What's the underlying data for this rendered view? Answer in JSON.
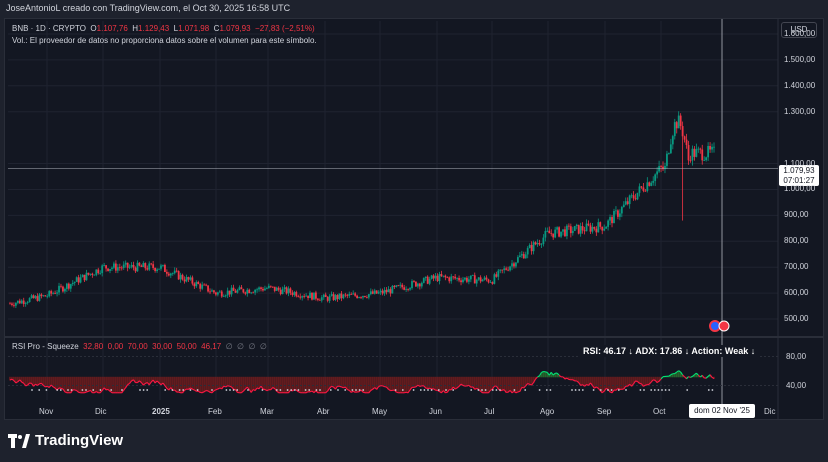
{
  "header": {
    "credit": "JoseAntonioL creado con TradingView.com, el Oct 30, 2025 16:58 UTC"
  },
  "legend": {
    "symbol": "BNB · 1D · CRYPTO",
    "open_label": "O",
    "open": "1.107,76",
    "high_label": "H",
    "high": "1.129,43",
    "low_label": "L",
    "low": "1.071,98",
    "close_label": "C",
    "close": "1.079,93",
    "change": "−27,83 (−2,51%)",
    "volume_note": "Vol.: El proveedor de datos no proporciona datos sobre el volumen para este símbolo."
  },
  "currency_button": "USD",
  "price_axis": [
    "1.600,00",
    "1.500,00",
    "1.400,00",
    "1.300,00",
    "1.100,00",
    "1.000,00",
    "900,00",
    "800,00",
    "700,00",
    "600,00",
    "500,00"
  ],
  "price_tag": {
    "price": "1.079,93",
    "countdown": "07:01:27"
  },
  "oscillator": {
    "name": "RSI Pro - Squeeze",
    "values": [
      "32,80",
      "0,00",
      "70,00",
      "30,00",
      "50,00",
      "46,17",
      "∅",
      "∅",
      "∅",
      "∅"
    ],
    "axis": [
      "80,00",
      "40,00"
    ],
    "status": "RSI: 46.17 ↓  ADX: 17.86 ↓  Action: Weak ↓"
  },
  "time_axis": [
    "Nov",
    "Dic",
    "2025",
    "Feb",
    "Mar",
    "Abr",
    "May",
    "Jun",
    "Jul",
    "Ago",
    "Sep",
    "Oct",
    "Dic"
  ],
  "crosshair_date": "dom 02 Nov '25",
  "footer": {
    "brand": "TradingView"
  },
  "colors": {
    "up": "#089981",
    "down": "#f23645",
    "background": "#131722",
    "rsi_green": "#00e676",
    "rsi_red": "#ff1744"
  },
  "chart_data": {
    "type": "candlestick",
    "symbol": "BNB",
    "interval": "1D",
    "y_range": [
      450,
      1650
    ],
    "monthly_close": {
      "x": [
        "Nov",
        "Dic",
        "2025",
        "Feb",
        "Mar",
        "Abr",
        "May",
        "Jun",
        "Jul",
        "Ago",
        "Sep",
        "Oct"
      ],
      "values": [
        590,
        700,
        700,
        600,
        620,
        580,
        600,
        660,
        650,
        830,
        860,
        1080
      ]
    },
    "last_close": 1079.93,
    "indicator": {
      "name": "RSI Pro - Squeeze",
      "levels": [
        80,
        40
      ]
    }
  }
}
